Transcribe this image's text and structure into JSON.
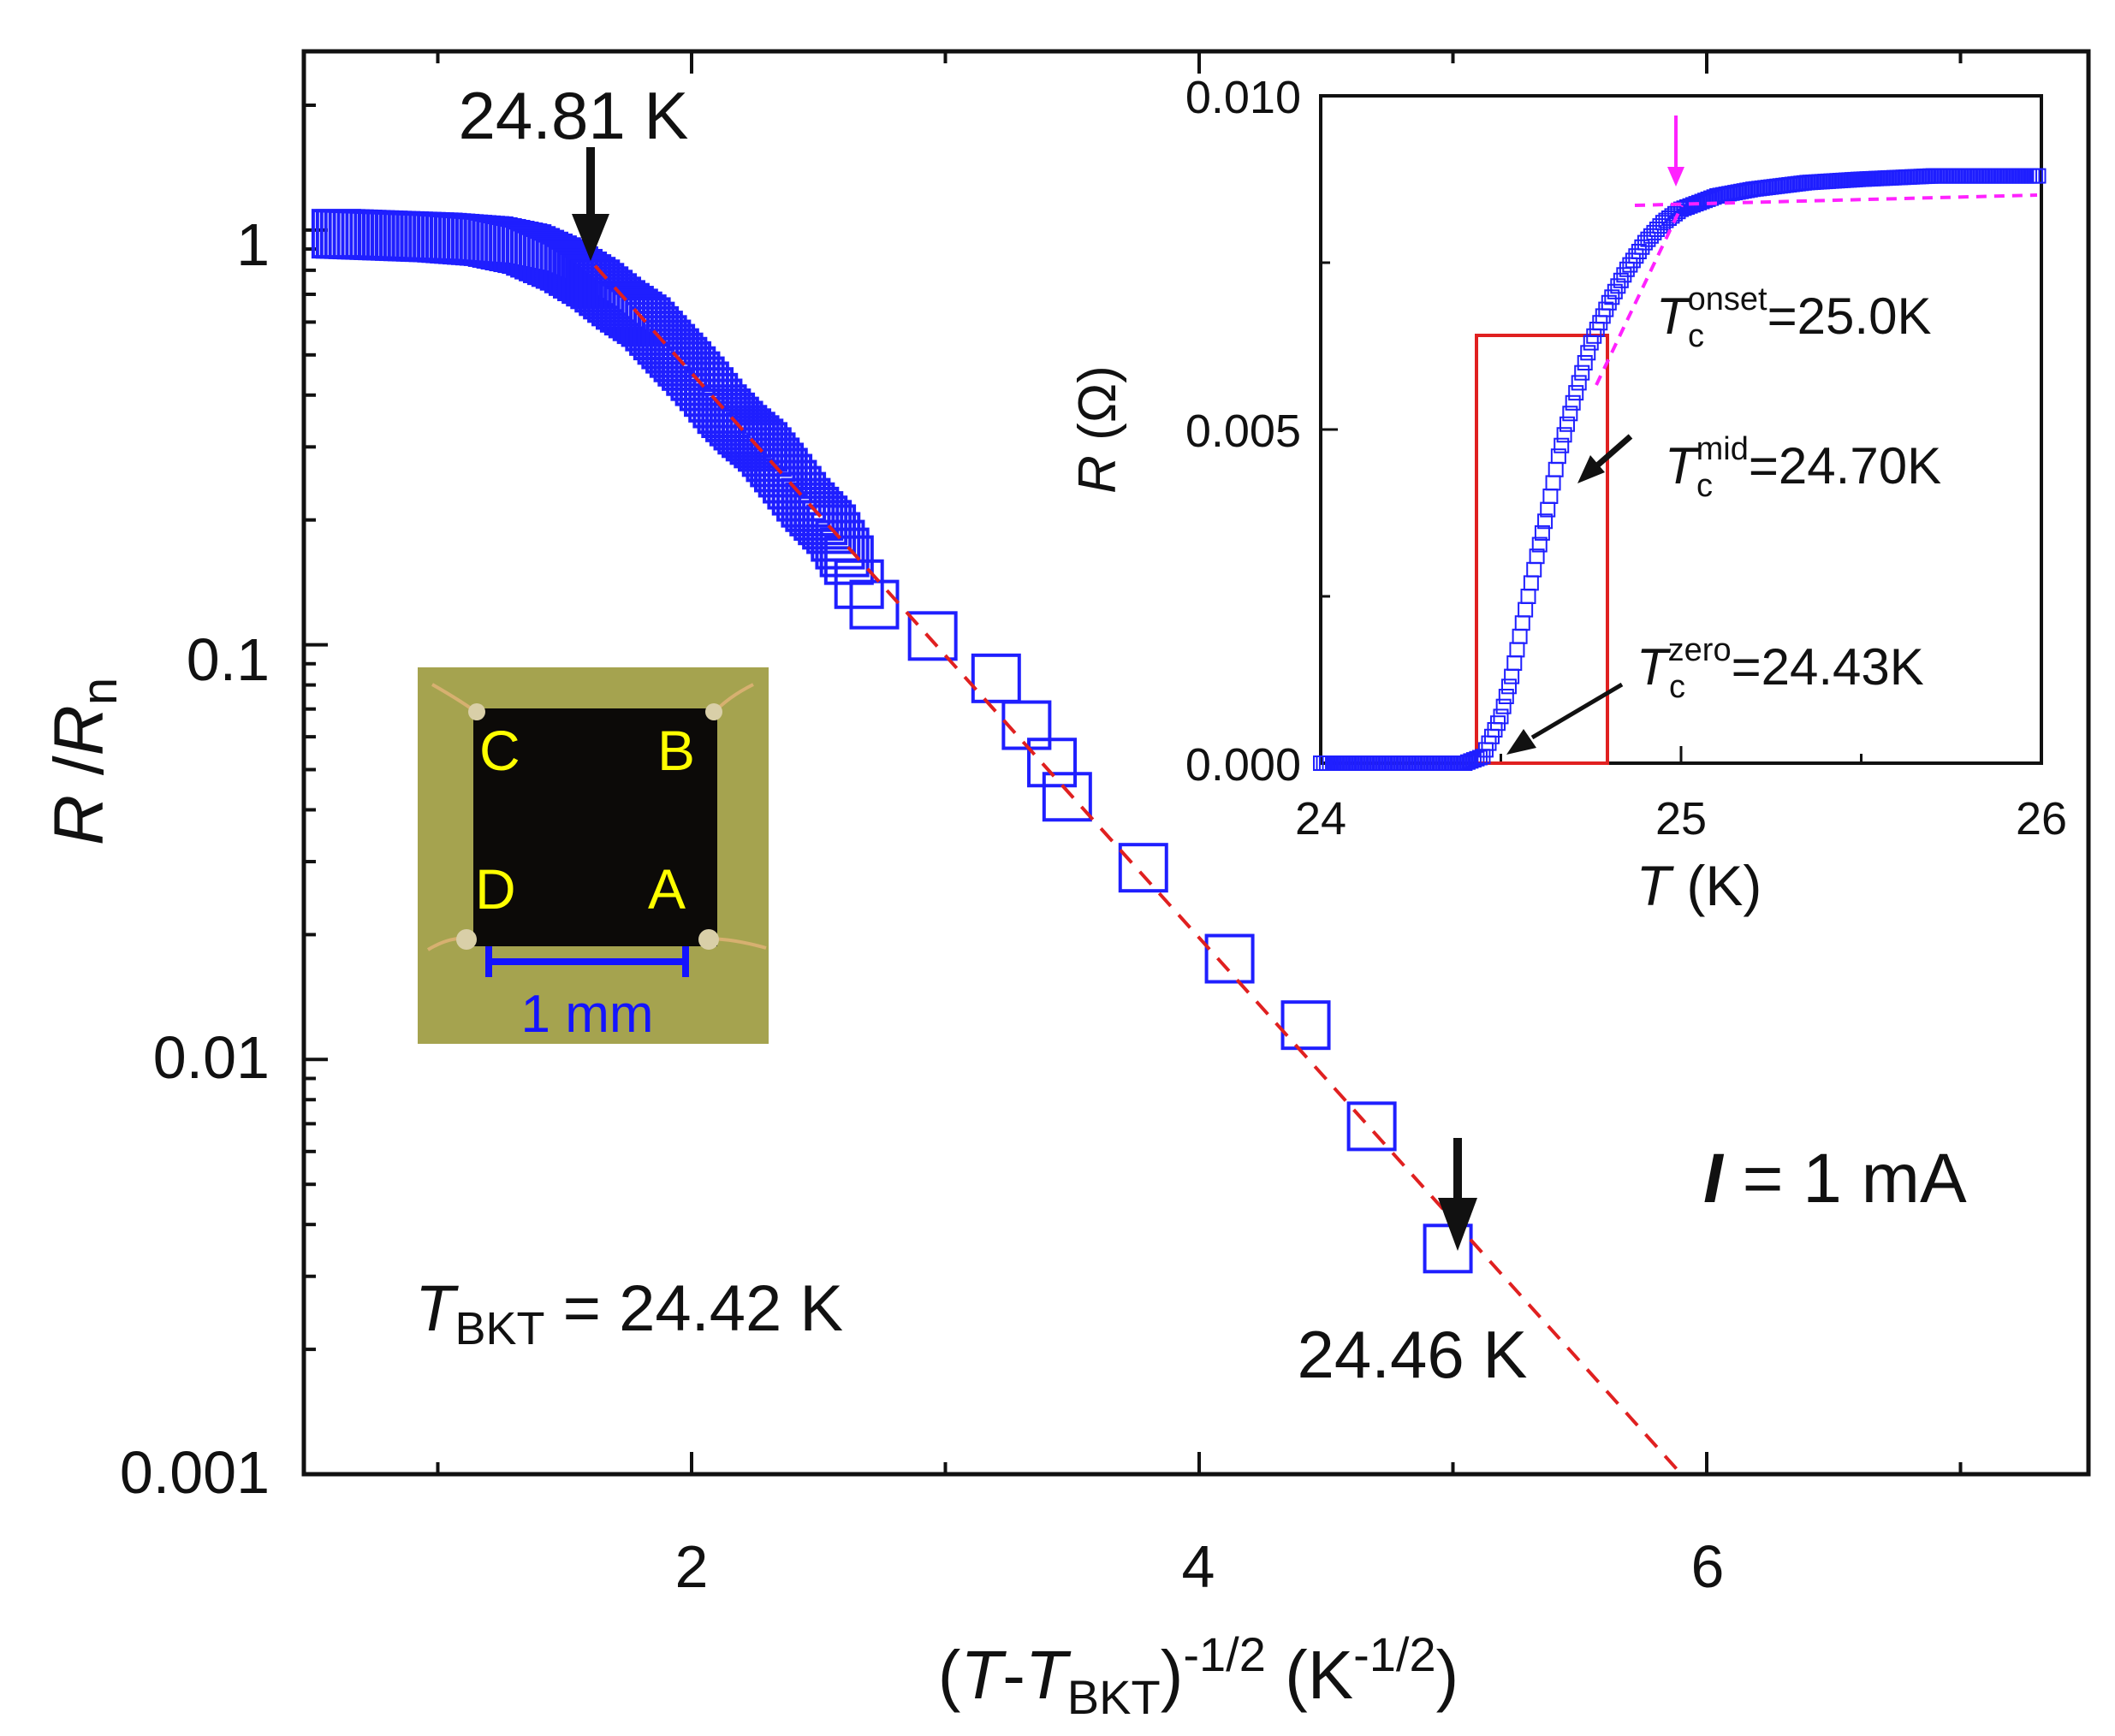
{
  "chart_data": [
    {
      "type": "scatter",
      "xlabel": {
        "pre": "(",
        "t": "T",
        "dash": "-",
        "t2": "T",
        "sub": "BKT",
        "close": ")",
        "sup": "-1/2",
        "unit_pre": " (K",
        "unit_sup": "-1/2",
        "unit_post": ")"
      },
      "ylabel": {
        "r": "R",
        "slash": " /",
        "r2": "R",
        "sub": "n"
      },
      "xlim": [
        0.55,
        7.4
      ],
      "ylim": [
        0.001,
        3
      ],
      "yscale": "log",
      "x_ticks": [
        "2",
        "4",
        "6"
      ],
      "y_ticks": [
        "0.001",
        "0.01",
        "0.1",
        "1"
      ],
      "series": [
        {
          "name": "R/Rn",
          "marker": "square",
          "color": "#1f1fff",
          "x": [
            0.6,
            1.0,
            1.2,
            1.35,
            1.5,
            1.62,
            1.72,
            1.82,
            1.9,
            1.98,
            2.05,
            2.12,
            2.2,
            2.28,
            2.36,
            2.45,
            2.55,
            2.62,
            2.66,
            2.72,
            2.95,
            3.2,
            3.32,
            3.42,
            3.48,
            3.78,
            4.12,
            4.42,
            4.68,
            4.98
          ],
          "y": [
            0.98,
            0.96,
            0.94,
            0.9,
            0.82,
            0.74,
            0.66,
            0.6,
            0.53,
            0.47,
            0.42,
            0.37,
            0.33,
            0.3,
            0.26,
            0.22,
            0.19,
            0.16,
            0.14,
            0.125,
            0.105,
            0.083,
            0.064,
            0.052,
            0.043,
            0.029,
            0.0175,
            0.0121,
            0.0069,
            0.0035
          ]
        },
        {
          "name": "BKT fit",
          "line": "dashed",
          "color": "#e02020",
          "x": [
            1.62,
            5.9
          ],
          "y": [
            0.82,
            0.001
          ]
        }
      ],
      "annotations": {
        "top_arrow_label": "24.81 K",
        "bottom_arrow_label": "24.46 K",
        "tbkt": {
          "t": "T",
          "sub": "BKT",
          "value": " = 24.42 K"
        },
        "current": {
          "i": "I",
          "value": " = 1 mA"
        }
      },
      "photo": {
        "labels": [
          "C",
          "B",
          "D",
          "A"
        ],
        "scale_bar": "1 mm"
      }
    },
    {
      "type": "scatter",
      "xlabel": {
        "t": "T",
        "unit": " (K)"
      },
      "ylabel": {
        "r": "R",
        "unit": " (Ω)"
      },
      "xlim": [
        24,
        26
      ],
      "ylim": [
        0.0,
        0.01
      ],
      "x_ticks": [
        "24",
        "25",
        "26"
      ],
      "y_ticks": [
        "0.000",
        "0.005",
        "0.010"
      ],
      "series": [
        {
          "name": "R(T)",
          "marker": "square",
          "color": "#1f1fff",
          "x": [
            24.0,
            24.1,
            24.2,
            24.3,
            24.4,
            24.45,
            24.5,
            24.53,
            24.56,
            24.6,
            24.63,
            24.66,
            24.7,
            24.75,
            24.8,
            24.85,
            24.9,
            24.95,
            25.0,
            25.1,
            25.2,
            25.35,
            25.5,
            25.7,
            25.9,
            26.0
          ],
          "y": [
            0.0,
            0.0,
            0.0,
            0.0,
            0.0,
            0.0001,
            0.0007,
            0.0013,
            0.0021,
            0.0031,
            0.0038,
            0.0046,
            0.0054,
            0.0063,
            0.0069,
            0.0074,
            0.0078,
            0.0081,
            0.0083,
            0.0085,
            0.0086,
            0.0087,
            0.00875,
            0.0088,
            0.0088,
            0.0088
          ]
        }
      ],
      "annotations": {
        "onset": {
          "t": "T",
          "sub": "c",
          "sup": "onset",
          "value": "=25.0K"
        },
        "mid": {
          "t": "T",
          "sub": "c",
          "sup": "mid",
          "value": "=24.70K"
        },
        "zero": {
          "t": "T",
          "sub": "c",
          "sup": "zero",
          "value": "=24.43K"
        }
      },
      "highlight_range": [
        24.45,
        24.8
      ]
    }
  ]
}
